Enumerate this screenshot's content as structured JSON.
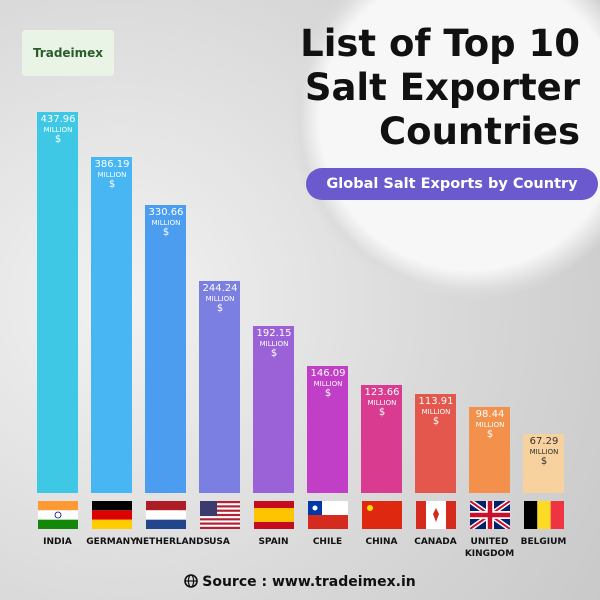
{
  "logo": "Tradeimex",
  "chart_data": {
    "type": "bar",
    "title": "List of Top 10 Salt Exporter Countries",
    "subtitle": "Global Salt Exports by Country",
    "categories": [
      "INDIA",
      "GERMANY",
      "NETHERLANDS",
      "USA",
      "SPAIN",
      "CHILE",
      "CHINA",
      "CANADA",
      "UNITED KINGDOM",
      "BELGIUM"
    ],
    "values": [
      437.96,
      386.19,
      330.66,
      244.24,
      192.15,
      146.09,
      123.66,
      113.91,
      98.44,
      67.29
    ],
    "value_unit": "MILLION",
    "value_currency": "$",
    "colors": [
      "#3ec8e6",
      "#47b6f2",
      "#4c9cf0",
      "#7b7fe2",
      "#9b62d8",
      "#c03fc6",
      "#d83b8f",
      "#e4574c",
      "#f3914c",
      "#f7d29e"
    ]
  },
  "source": "Source : www.tradeimex.in"
}
